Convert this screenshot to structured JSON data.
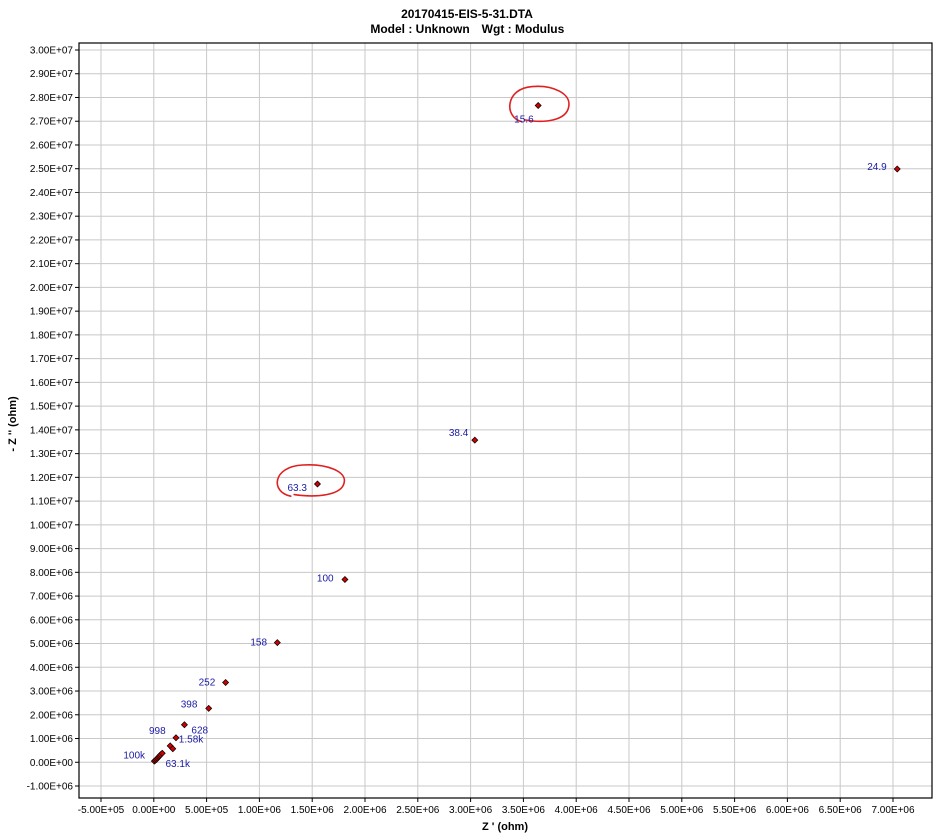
{
  "chart_data": {
    "type": "scatter",
    "title": "20170415-EIS-5-31.DTA",
    "subtitle_model": "Model : Unknown",
    "subtitle_wgt": "Wgt : Modulus",
    "xlabel": "Z ' (ohm)",
    "ylabel": "- Z '' (ohm)",
    "xlim": [
      -500000,
      7500000
    ],
    "ylim": [
      -1000000,
      30000000
    ],
    "x_ticks": [
      -500000,
      0,
      500000,
      1000000,
      1500000,
      2000000,
      2500000,
      3000000,
      3500000,
      4000000,
      4500000,
      5000000,
      5500000,
      6000000,
      6500000,
      7000000
    ],
    "x_tick_labels": [
      "-5.00E+05",
      "0.00E+00",
      "5.00E+05",
      "1.00E+06",
      "1.50E+06",
      "2.00E+06",
      "2.50E+06",
      "3.00E+06",
      "3.50E+06",
      "4.00E+06",
      "4.50E+06",
      "5.00E+06",
      "5.50E+06",
      "6.00E+06",
      "6.50E+06",
      "7.00E+06"
    ],
    "y_ticks": [
      -1000000,
      0,
      1000000,
      2000000,
      3000000,
      4000000,
      5000000,
      6000000,
      7000000,
      8000000,
      9000000,
      10000000,
      11000000,
      12000000,
      13000000,
      14000000,
      15000000,
      16000000,
      17000000,
      18000000,
      19000000,
      20000000,
      21000000,
      22000000,
      23000000,
      24000000,
      25000000,
      26000000,
      27000000,
      28000000,
      29000000,
      30000000
    ],
    "y_tick_labels": [
      "-1.00E+06",
      "0.00E+00",
      "1.00E+06",
      "2.00E+06",
      "3.00E+06",
      "4.00E+06",
      "5.00E+06",
      "6.00E+06",
      "7.00E+06",
      "8.00E+06",
      "9.00E+06",
      "1.00E+07",
      "1.10E+07",
      "1.20E+07",
      "1.30E+07",
      "1.40E+07",
      "1.50E+07",
      "1.60E+07",
      "1.70E+07",
      "1.80E+07",
      "1.90E+07",
      "2.00E+07",
      "2.10E+07",
      "2.20E+07",
      "2.30E+07",
      "2.40E+07",
      "2.50E+07",
      "2.60E+07",
      "2.70E+07",
      "2.80E+07",
      "2.90E+07",
      "3.00E+07"
    ],
    "grid": true,
    "point_color": "#cc0000",
    "label_color": "#1a1aa6",
    "highlight_color": "#e02020",
    "points": [
      {
        "x": 5000,
        "y": 50000,
        "label": ""
      },
      {
        "x": 15000,
        "y": 80000,
        "label": "100k"
      },
      {
        "x": 25000,
        "y": 120000,
        "label": ""
      },
      {
        "x": 35000,
        "y": 170000,
        "label": "63.1k"
      },
      {
        "x": 45000,
        "y": 220000,
        "label": ""
      },
      {
        "x": 55000,
        "y": 270000,
        "label": ""
      },
      {
        "x": 65000,
        "y": 320000,
        "label": ""
      },
      {
        "x": 80000,
        "y": 380000,
        "label": ""
      },
      {
        "x": 155000,
        "y": 690000,
        "label": ""
      },
      {
        "x": 180000,
        "y": 570000,
        "label": "1.58k"
      },
      {
        "x": 210000,
        "y": 1030000,
        "label": "998"
      },
      {
        "x": 290000,
        "y": 1580000,
        "label": "628"
      },
      {
        "x": 520000,
        "y": 2270000,
        "label": "398"
      },
      {
        "x": 680000,
        "y": 3360000,
        "label": "252"
      },
      {
        "x": 1170000,
        "y": 5040000,
        "label": "158"
      },
      {
        "x": 1810000,
        "y": 7700000,
        "label": "100"
      },
      {
        "x": 1550000,
        "y": 11720000,
        "label": "63.3"
      },
      {
        "x": 3040000,
        "y": 13570000,
        "label": "38.4"
      },
      {
        "x": 3640000,
        "y": 27660000,
        "label": "15.6"
      },
      {
        "x": 7040000,
        "y": 24990000,
        "label": "24.9"
      }
    ],
    "highlighted_labels": [
      "15.6",
      "63.3"
    ]
  }
}
